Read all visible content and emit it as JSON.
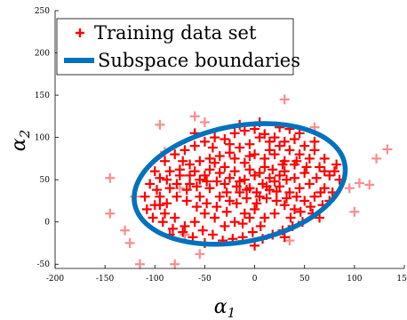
{
  "chart_data": {
    "type": "scatter",
    "xlabel": "α1",
    "ylabel": "α2",
    "xlim": [
      -200,
      150
    ],
    "ylim": [
      -55,
      250
    ],
    "x_ticks": [
      -200,
      -150,
      -100,
      -50,
      0,
      50,
      100,
      150
    ],
    "y_ticks": [
      -50,
      0,
      50,
      100,
      150,
      200,
      250
    ],
    "x_tick_labels": [
      "-200",
      "-150",
      "-100",
      "-50",
      "0",
      "50",
      "100",
      "150"
    ],
    "y_tick_labels": [
      "-50",
      "0",
      "50",
      "100",
      "150",
      "200",
      "250"
    ],
    "grid": false,
    "legend_position": "top-left",
    "legend": [
      {
        "label": "Training data set",
        "marker": "plus",
        "color": "#ff0000"
      },
      {
        "label": "Subspace boundaries",
        "marker": "line",
        "color": "#0072bd"
      }
    ],
    "series": [
      {
        "name": "Training data set",
        "marker": "plus",
        "color": "#ff0000",
        "points_inside": [
          [
            -60,
            60
          ],
          [
            -50,
            55
          ],
          [
            -40,
            70
          ],
          [
            -30,
            45
          ],
          [
            -20,
            60
          ],
          [
            -10,
            50
          ],
          [
            0,
            55
          ],
          [
            10,
            65
          ],
          [
            20,
            48
          ],
          [
            30,
            60
          ],
          [
            40,
            52
          ],
          [
            50,
            58
          ],
          [
            -45,
            40
          ],
          [
            -35,
            30
          ],
          [
            -25,
            25
          ],
          [
            -15,
            35
          ],
          [
            -5,
            40
          ],
          [
            5,
            30
          ],
          [
            15,
            38
          ],
          [
            25,
            42
          ],
          [
            35,
            35
          ],
          [
            45,
            40
          ],
          [
            55,
            45
          ],
          [
            -55,
            30
          ],
          [
            -65,
            45
          ],
          [
            -75,
            55
          ],
          [
            -85,
            40
          ],
          [
            -95,
            30
          ],
          [
            -100,
            20
          ],
          [
            -90,
            10
          ],
          [
            -80,
            5
          ],
          [
            -70,
            -5
          ],
          [
            -60,
            0
          ],
          [
            -50,
            10
          ],
          [
            -40,
            5
          ],
          [
            -30,
            -5
          ],
          [
            -20,
            0
          ],
          [
            -10,
            10
          ],
          [
            0,
            15
          ],
          [
            10,
            5
          ],
          [
            20,
            10
          ],
          [
            30,
            20
          ],
          [
            40,
            15
          ],
          [
            50,
            25
          ],
          [
            60,
            30
          ],
          [
            70,
            40
          ],
          [
            75,
            55
          ],
          [
            65,
            65
          ],
          [
            55,
            75
          ],
          [
            45,
            80
          ],
          [
            35,
            85
          ],
          [
            25,
            90
          ],
          [
            15,
            95
          ],
          [
            5,
            100
          ],
          [
            -5,
            92
          ],
          [
            -15,
            88
          ],
          [
            -25,
            82
          ],
          [
            -35,
            78
          ],
          [
            -45,
            75
          ],
          [
            -55,
            72
          ],
          [
            -65,
            68
          ],
          [
            -75,
            62
          ],
          [
            -85,
            60
          ],
          [
            -95,
            52
          ],
          [
            -105,
            45
          ],
          [
            -110,
            30
          ],
          [
            -100,
            60
          ],
          [
            -90,
            72
          ],
          [
            -80,
            80
          ],
          [
            -70,
            85
          ],
          [
            -60,
            90
          ],
          [
            -50,
            95
          ],
          [
            -40,
            100
          ],
          [
            -30,
            98
          ],
          [
            -20,
            105
          ],
          [
            -10,
            108
          ],
          [
            0,
            110
          ],
          [
            10,
            104
          ],
          [
            20,
            100
          ],
          [
            30,
            95
          ],
          [
            40,
            98
          ],
          [
            50,
            90
          ],
          [
            60,
            85
          ],
          [
            70,
            75
          ],
          [
            80,
            60
          ],
          [
            85,
            50
          ],
          [
            78,
            35
          ],
          [
            68,
            20
          ],
          [
            58,
            10
          ],
          [
            48,
            0
          ],
          [
            38,
            -5
          ],
          [
            28,
            -10
          ],
          [
            18,
            -15
          ],
          [
            8,
            -20
          ],
          [
            -2,
            -12
          ],
          [
            -12,
            -18
          ],
          [
            -22,
            -20
          ],
          [
            -32,
            -22
          ],
          [
            -42,
            -15
          ],
          [
            -52,
            -10
          ],
          [
            -62,
            -18
          ],
          [
            -72,
            -12
          ],
          [
            -82,
            -8
          ],
          [
            -92,
            0
          ],
          [
            -102,
            5
          ],
          [
            -30,
            65
          ],
          [
            -20,
            75
          ],
          [
            -10,
            70
          ],
          [
            0,
            80
          ],
          [
            10,
            75
          ],
          [
            20,
            80
          ],
          [
            30,
            72
          ],
          [
            40,
            68
          ],
          [
            -5,
            62
          ],
          [
            5,
            58
          ],
          [
            15,
            52
          ],
          [
            25,
            55
          ],
          [
            -15,
            48
          ],
          [
            -25,
            52
          ],
          [
            -35,
            58
          ],
          [
            -45,
            62
          ],
          [
            8,
            45
          ],
          [
            18,
            62
          ],
          [
            28,
            68
          ],
          [
            -8,
            28
          ],
          [
            -18,
            22
          ],
          [
            2,
            22
          ],
          [
            12,
            28
          ],
          [
            22,
            25
          ],
          [
            32,
            28
          ],
          [
            42,
            30
          ],
          [
            -28,
            12
          ],
          [
            -38,
            18
          ],
          [
            -48,
            22
          ],
          [
            -58,
            18
          ],
          [
            -68,
            25
          ],
          [
            -78,
            30
          ],
          [
            -88,
            22
          ],
          [
            -5,
            5
          ],
          [
            6,
            -5
          ],
          [
            -12,
            -2
          ],
          [
            36,
            5
          ],
          [
            46,
            12
          ],
          [
            56,
            18
          ],
          [
            66,
            35
          ],
          [
            -98,
            38
          ],
          [
            -108,
            15
          ],
          [
            -65,
            55
          ],
          [
            -55,
            50
          ],
          [
            70,
            60
          ],
          [
            62,
            52
          ],
          [
            52,
            65
          ],
          [
            42,
            72
          ],
          [
            32,
            50
          ],
          [
            22,
            36
          ],
          [
            12,
            42
          ],
          [
            2,
            35
          ],
          [
            -8,
            38
          ],
          [
            -18,
            42
          ],
          [
            -28,
            35
          ],
          [
            -38,
            48
          ],
          [
            -48,
            48
          ],
          [
            -58,
            42
          ],
          [
            -68,
            38
          ],
          [
            -78,
            45
          ],
          [
            -88,
            50
          ],
          [
            15,
            85
          ],
          [
            -5,
            78
          ],
          [
            -25,
            92
          ],
          [
            35,
            110
          ],
          [
            -42,
            88
          ],
          [
            60,
            95
          ],
          [
            -72,
            72
          ],
          [
            82,
            68
          ],
          [
            -95,
            20
          ],
          [
            0,
            -28
          ],
          [
            30,
            -18
          ],
          [
            -50,
            -25
          ],
          [
            -85,
            -15
          ],
          [
            65,
            5
          ],
          [
            75,
            25
          ],
          [
            -15,
            115
          ],
          [
            5,
            118
          ],
          [
            25,
            112
          ],
          [
            -60,
            105
          ],
          [
            45,
            105
          ]
        ],
        "points_outside": [
          [
            -145,
            52
          ],
          [
            -145,
            10
          ],
          [
            -130,
            -10
          ],
          [
            -115,
            -50
          ],
          [
            -95,
            115
          ],
          [
            -90,
            83
          ],
          [
            -80,
            -50
          ],
          [
            -75,
            40
          ],
          [
            -70,
            -15
          ],
          [
            -60,
            125
          ],
          [
            -55,
            -38
          ],
          [
            30,
            145
          ],
          [
            35,
            -22
          ],
          [
            95,
            40
          ],
          [
            100,
            12
          ],
          [
            105,
            46
          ],
          [
            115,
            44
          ],
          [
            122,
            75
          ],
          [
            133,
            86
          ],
          [
            -120,
            30
          ],
          [
            -125,
            -25
          ],
          [
            -50,
            118
          ],
          [
            60,
            112
          ]
        ]
      }
    ],
    "boundary": {
      "name": "Subspace boundaries",
      "type": "ellipse",
      "center": [
        -15,
        45
      ],
      "semi_axes": [
        108,
        68
      ],
      "rotation_deg": 15,
      "color": "#0072bd"
    }
  },
  "legend": {
    "training_label": "Training data set",
    "boundary_label": "Subspace boundaries"
  }
}
